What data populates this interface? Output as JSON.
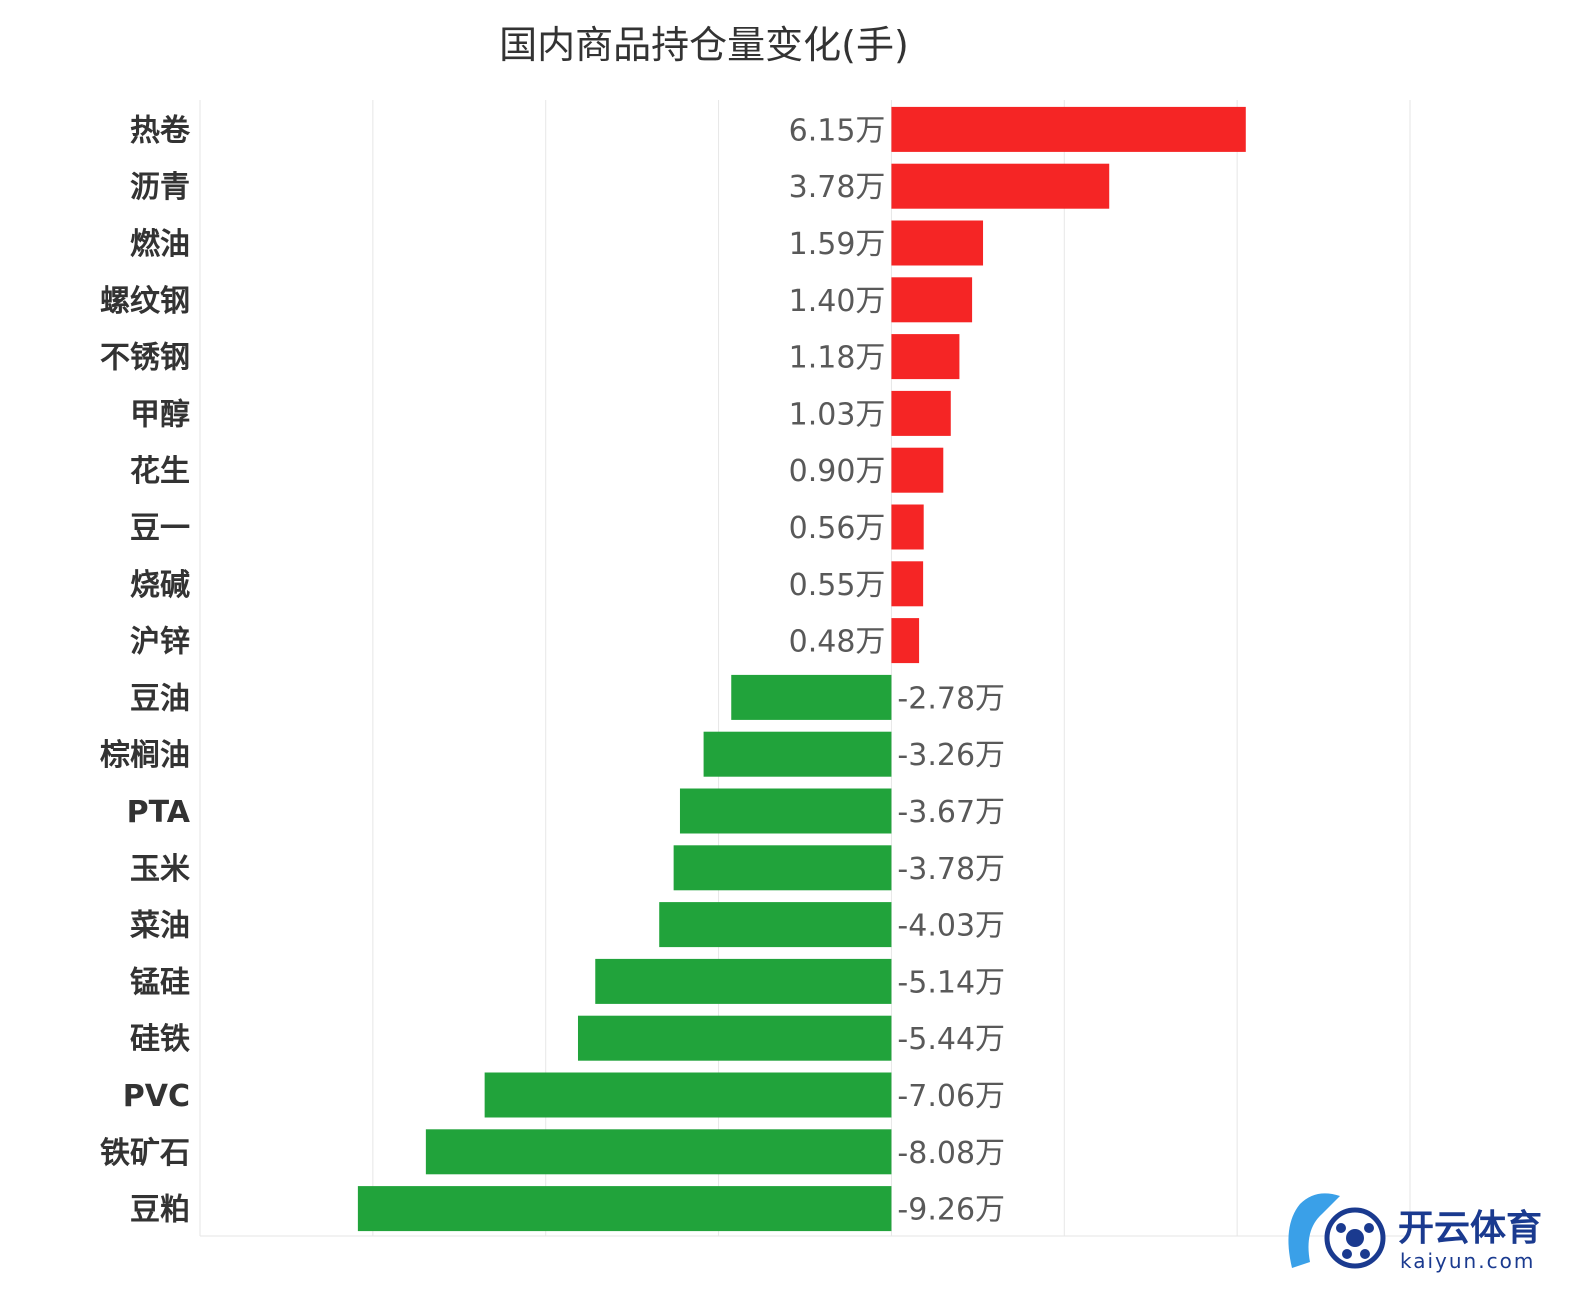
{
  "chart_data": {
    "type": "bar",
    "orientation": "horizontal",
    "title": "国内商品持仓量变化(手)",
    "categories": [
      "热卷",
      "沥青",
      "燃油",
      "螺纹钢",
      "不锈钢",
      "甲醇",
      "花生",
      "豆一",
      "烧碱",
      "沪锌",
      "豆油",
      "棕榈油",
      "PTA",
      "玉米",
      "菜油",
      "锰硅",
      "硅铁",
      "PVC",
      "铁矿石",
      "豆粕"
    ],
    "values": [
      6.15,
      3.78,
      1.59,
      1.4,
      1.18,
      1.03,
      0.9,
      0.56,
      0.55,
      0.48,
      -2.78,
      -3.26,
      -3.67,
      -3.78,
      -4.03,
      -5.14,
      -5.44,
      -7.06,
      -8.08,
      -9.26
    ],
    "value_labels": [
      "6.15万",
      "3.78万",
      "1.59万",
      "1.40万",
      "1.18万",
      "1.03万",
      "0.90万",
      "0.56万",
      "0.55万",
      "0.48万",
      "-2.78万",
      "-3.26万",
      "-3.67万",
      "-3.78万",
      "-4.03万",
      "-5.14万",
      "-5.44万",
      "-7.06万",
      "-8.08万",
      "-9.26万"
    ],
    "unit": "万",
    "xlim": [
      -12,
      9
    ],
    "gridlines_every": 3,
    "grid": true,
    "legend": "none",
    "colors": {
      "positive": "#f52525",
      "negative": "#21a33b",
      "grid": "#e6e6e6"
    }
  },
  "watermark": {
    "brand": "开云体育",
    "domain": "kaiyun.com"
  }
}
